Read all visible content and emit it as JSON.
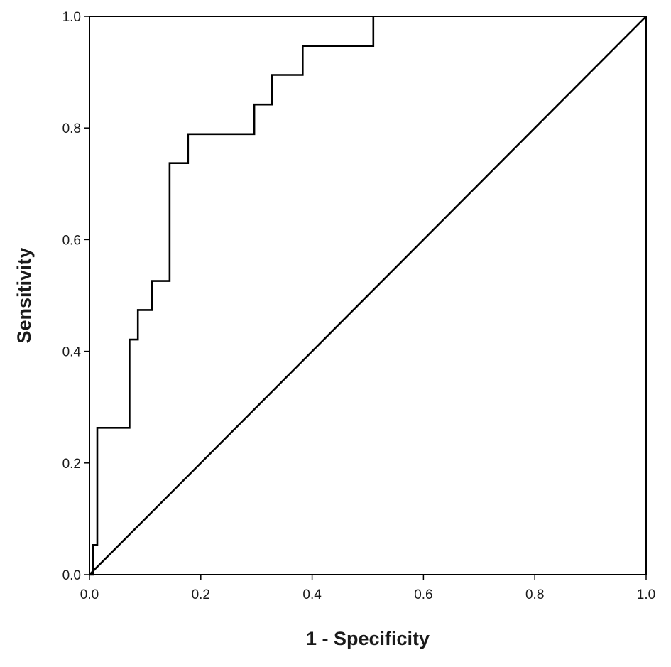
{
  "chart_data": {
    "type": "line",
    "title": "",
    "xlabel": "1 - Specificity",
    "ylabel": "Sensitivity",
    "xlim": [
      0.0,
      1.0
    ],
    "ylim": [
      0.0,
      1.0
    ],
    "x_ticks": [
      0.0,
      0.2,
      0.4,
      0.6,
      0.8,
      1.0
    ],
    "y_ticks": [
      0.0,
      0.2,
      0.4,
      0.6,
      0.8,
      1.0
    ],
    "x_tick_labels": [
      "0.0",
      "0.2",
      "0.4",
      "0.6",
      "0.8",
      "1.0"
    ],
    "y_tick_labels": [
      "0.0",
      "0.2",
      "0.4",
      "0.6",
      "0.8",
      "1.0"
    ],
    "grid": false,
    "legend": "none",
    "line_color": "#000000",
    "series": [
      {
        "style": "step",
        "x": [
          0.0,
          0.006,
          0.006,
          0.014,
          0.014,
          0.072,
          0.072,
          0.087,
          0.087,
          0.112,
          0.112,
          0.144,
          0.144,
          0.177,
          0.177,
          0.296,
          0.296,
          0.328,
          0.328,
          0.383,
          0.383,
          0.51,
          0.51
        ],
        "y": [
          0.0,
          0.0,
          0.053,
          0.053,
          0.263,
          0.263,
          0.421,
          0.421,
          0.474,
          0.474,
          0.526,
          0.526,
          0.737,
          0.737,
          0.789,
          0.789,
          0.842,
          0.842,
          0.895,
          0.895,
          0.947,
          0.947,
          1.0
        ]
      },
      {
        "style": "reference",
        "x": [
          0.0,
          1.0
        ],
        "y": [
          0.0,
          1.0
        ]
      }
    ]
  }
}
